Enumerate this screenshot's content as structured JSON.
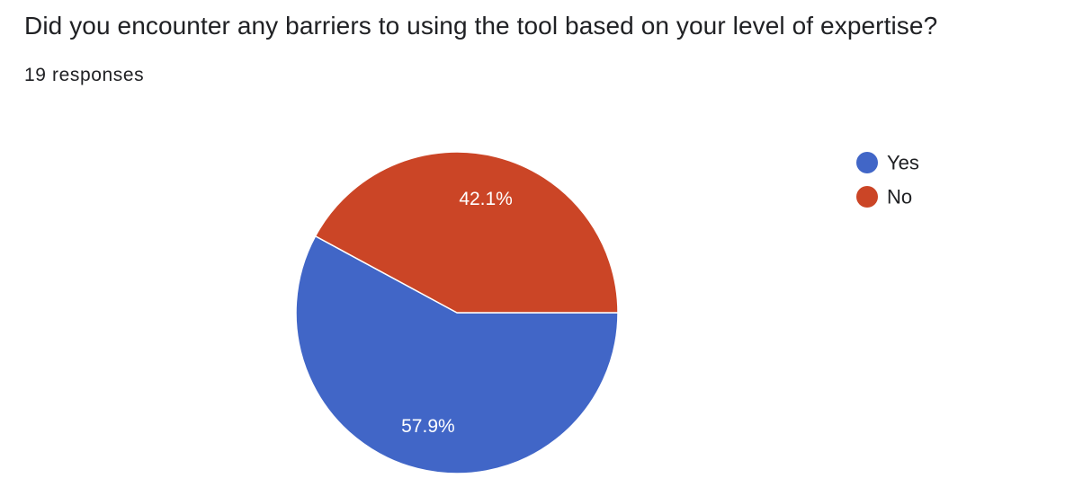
{
  "question": {
    "title": "Did you encounter any barriers to using the tool based on your level of expertise?",
    "responses_label": "19 responses"
  },
  "chart_data": {
    "type": "pie",
    "title": "",
    "categories": [
      "Yes",
      "No"
    ],
    "values": [
      57.9,
      42.1
    ],
    "value_labels": [
      "57.9%",
      "42.1%"
    ],
    "colors": [
      "#4166c7",
      "#cb4526"
    ],
    "legend_position": "right"
  }
}
